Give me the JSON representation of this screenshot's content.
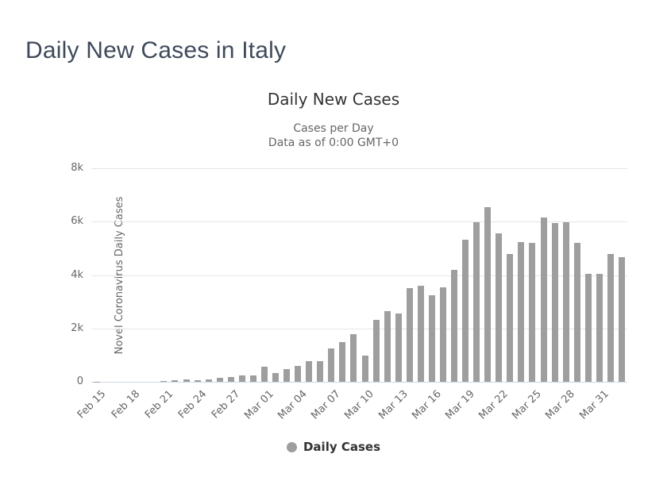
{
  "page": {
    "title": "Daily New Cases in Italy"
  },
  "colors": {
    "bar": "#9e9e9e",
    "gridline": "#e6e6e6",
    "x_axis_line": "#ccd6eb",
    "page_title_text": "#3e4a5c",
    "chart_title_text": "#333333",
    "muted_text": "#666666",
    "legend_marker": "#9e9e9e"
  },
  "chart_data": {
    "type": "bar",
    "title": "Daily New Cases",
    "subtitle1": "Cases per Day",
    "subtitle2": "Data as of 0:00 GMT+0",
    "ylabel": "Novel Coronavirus Daily Cases",
    "xlabel": "",
    "legend_label": "Daily Cases",
    "legend_position": "bottom",
    "grid": true,
    "ylim": [
      0,
      8000
    ],
    "ytick_labels": [
      "0",
      "2k",
      "4k",
      "6k",
      "8k"
    ],
    "x_label_every": 3,
    "categories": [
      "Feb 15",
      "Feb 16",
      "Feb 17",
      "Feb 18",
      "Feb 19",
      "Feb 20",
      "Feb 21",
      "Feb 22",
      "Feb 23",
      "Feb 24",
      "Feb 25",
      "Feb 26",
      "Feb 27",
      "Feb 28",
      "Feb 29",
      "Mar 01",
      "Mar 02",
      "Mar 03",
      "Mar 04",
      "Mar 05",
      "Mar 06",
      "Mar 07",
      "Mar 08",
      "Mar 09",
      "Mar 10",
      "Mar 11",
      "Mar 12",
      "Mar 13",
      "Mar 14",
      "Mar 15",
      "Mar 16",
      "Mar 17",
      "Mar 18",
      "Mar 19",
      "Mar 20",
      "Mar 21",
      "Mar 22",
      "Mar 23",
      "Mar 24",
      "Mar 25",
      "Mar 26",
      "Mar 27",
      "Mar 28",
      "Mar 29",
      "Mar 30",
      "Mar 31",
      "Apr 01",
      "Apr 02"
    ],
    "values": [
      3,
      0,
      0,
      0,
      0,
      1,
      17,
      59,
      78,
      72,
      94,
      147,
      185,
      233,
      239,
      573,
      335,
      466,
      587,
      769,
      778,
      1247,
      1492,
      1797,
      977,
      2313,
      2651,
      2547,
      3497,
      3590,
      3233,
      3526,
      4207,
      5322,
      5986,
      6557,
      5560,
      4789,
      5249,
      5210,
      6153,
      5959,
      5974,
      5217,
      4050,
      4053,
      4782,
      4668
    ]
  }
}
